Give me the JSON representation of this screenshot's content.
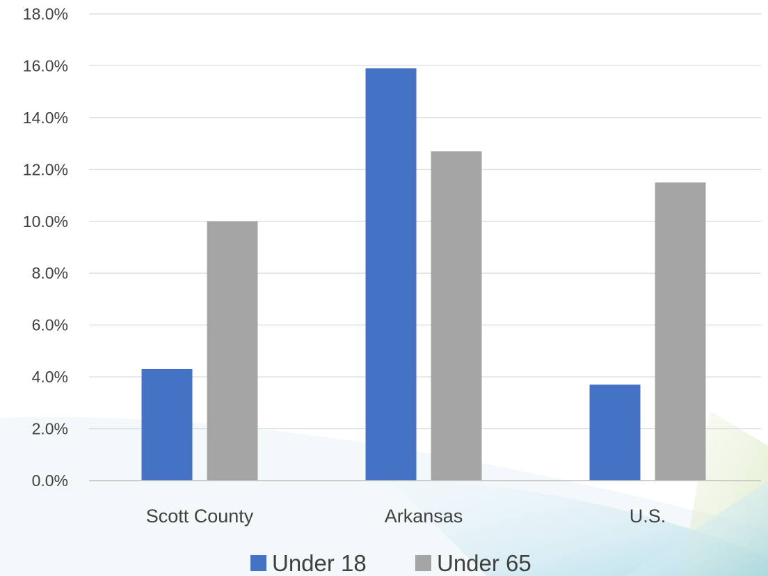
{
  "chart_data": {
    "type": "bar",
    "categories": [
      "Scott County",
      "Arkansas",
      "U.S."
    ],
    "series": [
      {
        "name": "Under 18",
        "values": [
          4.3,
          15.9,
          3.7
        ],
        "color": "#4472C4"
      },
      {
        "name": "Under 65",
        "values": [
          10.0,
          12.7,
          11.5
        ],
        "color": "#A5A5A5"
      }
    ],
    "y_ticks": [
      "0.0%",
      "2.0%",
      "4.0%",
      "6.0%",
      "8.0%",
      "10.0%",
      "12.0%",
      "14.0%",
      "16.0%",
      "18.0%"
    ],
    "ylim": [
      0,
      18
    ],
    "value_format": "percent",
    "grid": true,
    "legend_position": "bottom",
    "title": "",
    "xlabel": "",
    "ylabel": ""
  }
}
